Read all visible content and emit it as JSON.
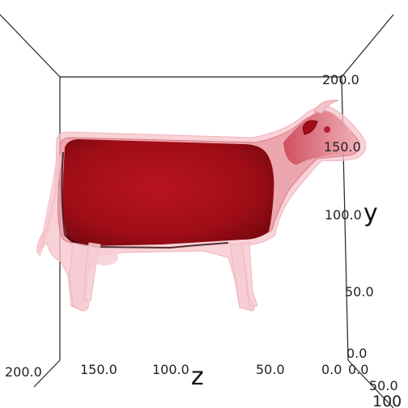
{
  "scene": {
    "colors": {
      "background": "#ffffff",
      "frame": "#222222",
      "volume": "#b3111b",
      "shell": "#f2b4bc"
    },
    "axes": {
      "y": {
        "title": "y",
        "ticks": [
          "200.0",
          "150.0",
          "100.0",
          "50.0",
          "0.0"
        ]
      },
      "z": {
        "title": "z",
        "ticks": [
          "200.0",
          "150.0",
          "100.0",
          "50.0",
          "0.0"
        ]
      },
      "x": {
        "ticks": [
          "0.0",
          "50.0",
          "100"
        ]
      }
    }
  }
}
